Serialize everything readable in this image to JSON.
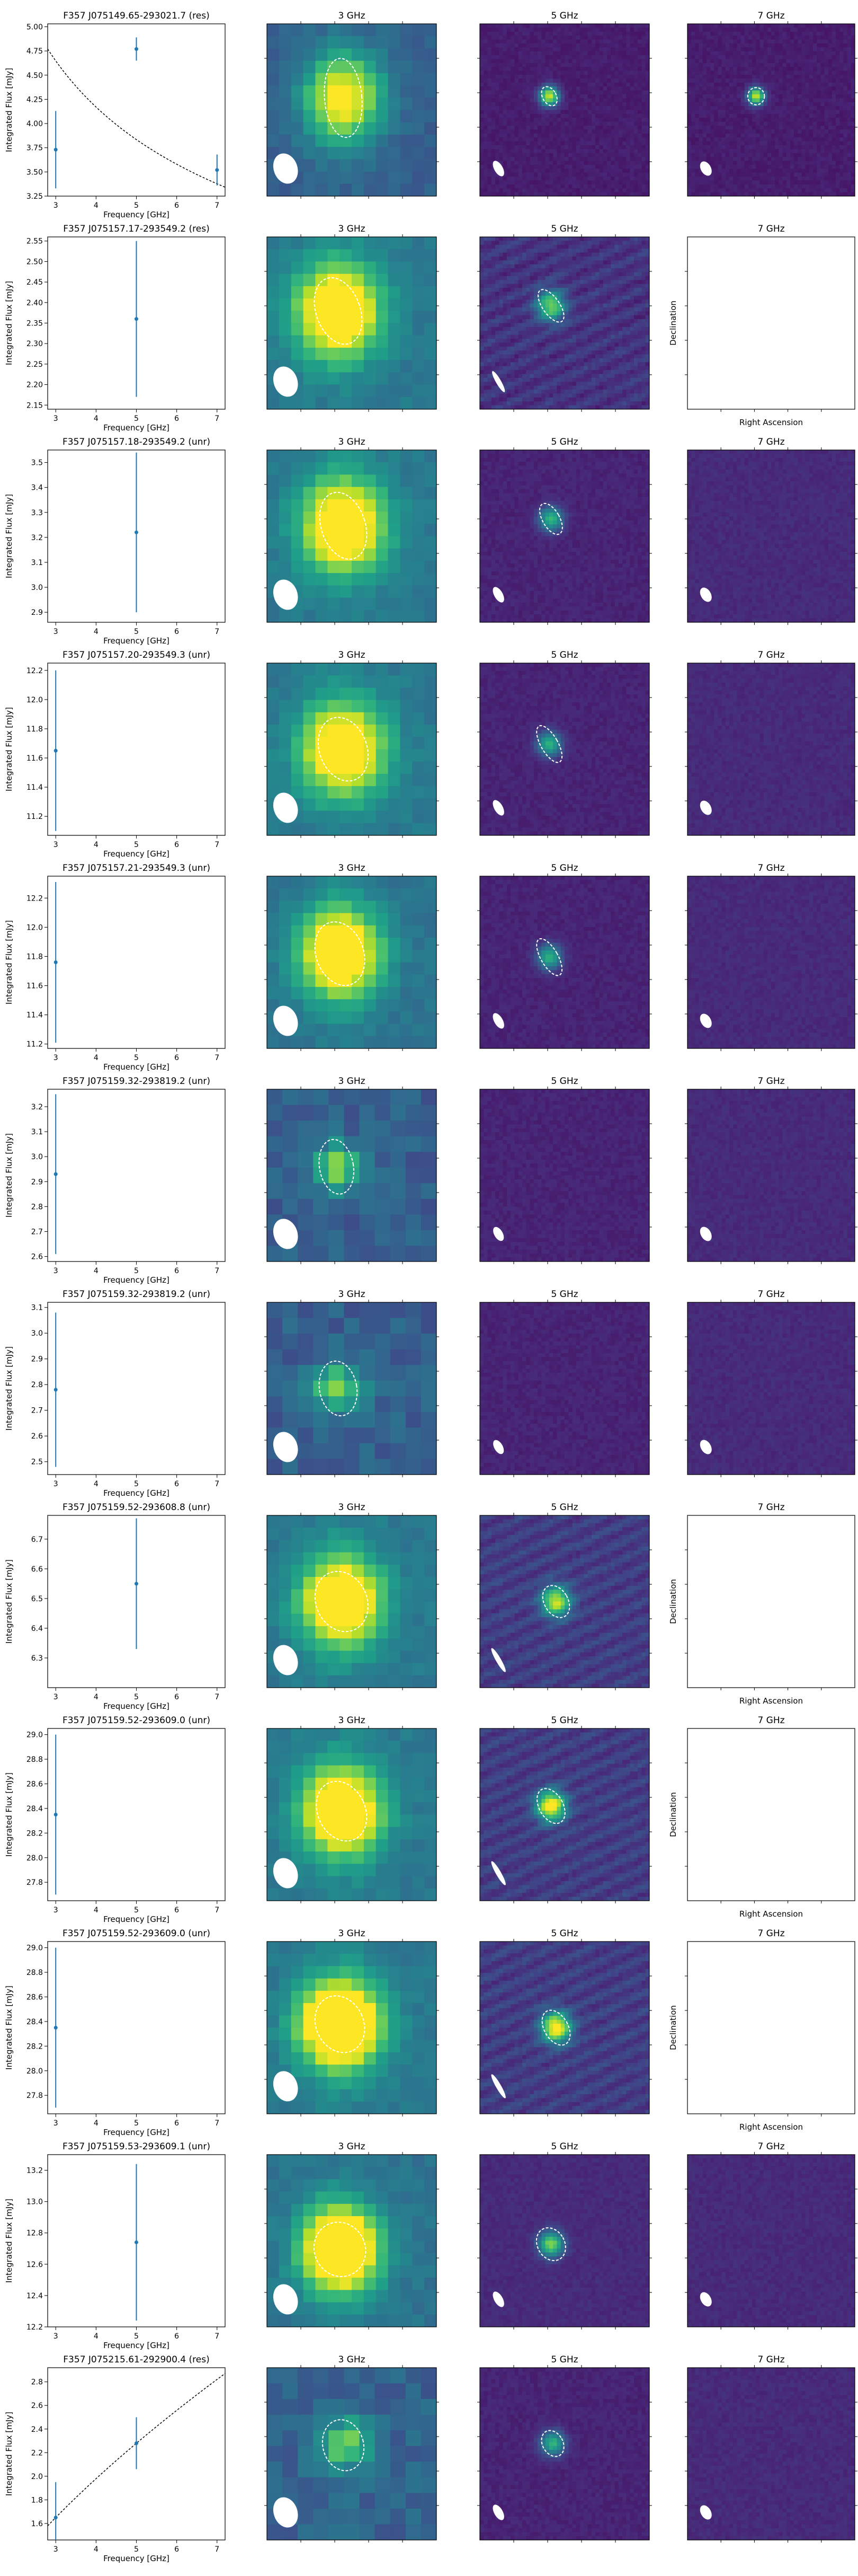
{
  "chart_data": {
    "type": "figure-grid",
    "column_titles": [
      "3 GHz",
      "5 GHz",
      "7 GHz"
    ],
    "common": {
      "xlabel": "Frequency [GHz]",
      "ylabel": "Integrated Flux [mJy]",
      "xticks": [
        3,
        4,
        5,
        6,
        7
      ],
      "xlim": [
        2.8,
        7.2
      ],
      "empty_xlabel": "Right Ascension",
      "empty_ylabel": "Declination"
    },
    "panels": [
      {
        "title": "F357 J075149.65-293021.7 (res)",
        "ylim": [
          3.25,
          5.03
        ],
        "yticks": [
          "3.25",
          "3.50",
          "3.75",
          "4.00",
          "4.25",
          "4.50",
          "4.75",
          "5.00"
        ],
        "points": [
          {
            "x": 3,
            "y": 3.73,
            "err": 0.4
          },
          {
            "x": 5,
            "y": 4.77,
            "err": 0.12
          },
          {
            "x": 7,
            "y": 3.52,
            "err": 0.16
          }
        ],
        "fit": {
          "A": 4.648,
          "alpha": -0.3768
        },
        "images": [
          {
            "state": "image",
            "map": "smooth",
            "peak": 0.55,
            "bg": 0.3,
            "src_x": 0.45,
            "src_y": 0.43,
            "size": 0.16,
            "ell_rx": 0.11,
            "ell_ry": 0.23,
            "ell_rot": -5,
            "beam": true
          },
          {
            "state": "image",
            "map": "fine",
            "peak": 0.85,
            "bg": 0.08,
            "src_x": 0.41,
            "src_y": 0.42,
            "size": 0.04,
            "ell_rx": 0.04,
            "ell_ry": 0.06,
            "ell_rot": -30,
            "beam": true,
            "beam_rx": 0.025,
            "beam_ry": 0.05
          },
          {
            "state": "image",
            "map": "fine",
            "peak": 0.85,
            "bg": 0.08,
            "src_x": 0.41,
            "src_y": 0.42,
            "size": 0.035,
            "ell_rx": 0.05,
            "ell_ry": 0.05,
            "ell_rot": 0,
            "beam": true,
            "beam_rx": 0.03,
            "beam_ry": 0.045
          }
        ]
      },
      {
        "title": "F357 J075157.17-293549.2 (res)",
        "ylim": [
          2.14,
          2.56
        ],
        "yticks": [
          "2.15",
          "2.20",
          "2.25",
          "2.30",
          "2.35",
          "2.40",
          "2.45",
          "2.50",
          "2.55"
        ],
        "points": [
          {
            "x": 5,
            "y": 2.36,
            "err": 0.19
          }
        ],
        "fit": null,
        "images": [
          {
            "state": "image",
            "map": "smooth",
            "peak": 0.75,
            "bg": 0.4,
            "src_x": 0.42,
            "src_y": 0.43,
            "size": 0.17,
            "ell_rx": 0.13,
            "ell_ry": 0.2,
            "ell_rot": -20,
            "beam": true
          },
          {
            "state": "image",
            "map": "striped",
            "peak": 0.65,
            "bg": 0.15,
            "src_x": 0.42,
            "src_y": 0.4,
            "size": 0.06,
            "ell_rx": 0.05,
            "ell_ry": 0.11,
            "ell_rot": -35,
            "beam": true,
            "beam_rx": 0.015,
            "beam_ry": 0.07
          },
          {
            "state": "empty"
          }
        ]
      },
      {
        "title": "F357 J075157.18-293549.2 (unr)",
        "ylim": [
          2.86,
          3.55
        ],
        "yticks": [
          "2.9",
          "3.0",
          "3.1",
          "3.2",
          "3.3",
          "3.4",
          "3.5"
        ],
        "points": [
          {
            "x": 5,
            "y": 3.22,
            "err": 0.32
          }
        ],
        "fit": null,
        "images": [
          {
            "state": "image",
            "map": "smooth",
            "peak": 0.72,
            "bg": 0.4,
            "src_x": 0.45,
            "src_y": 0.44,
            "size": 0.17,
            "ell_rx": 0.13,
            "ell_ry": 0.2,
            "ell_rot": -18,
            "beam": true
          },
          {
            "state": "image",
            "map": "fine",
            "peak": 0.55,
            "bg": 0.1,
            "src_x": 0.42,
            "src_y": 0.4,
            "size": 0.05,
            "ell_rx": 0.05,
            "ell_ry": 0.1,
            "ell_rot": -30,
            "beam": true,
            "beam_rx": 0.025,
            "beam_ry": 0.05
          },
          {
            "state": "image",
            "map": "fine",
            "peak": 0.0,
            "bg": 0.12,
            "src_x": 0.5,
            "src_y": 0.5,
            "size": 0.05,
            "ell_rx": 0,
            "ell_ry": 0,
            "ell_rot": 0,
            "beam": true,
            "beam_rx": 0.03,
            "beam_ry": 0.045
          }
        ]
      },
      {
        "title": "F357 J075157.20-293549.3 (unr)",
        "ylim": [
          11.07,
          12.25
        ],
        "yticks": [
          "11.2",
          "11.4",
          "11.6",
          "11.8",
          "12.0",
          "12.2"
        ],
        "points": [
          {
            "x": 3,
            "y": 11.65,
            "err": 0.55
          }
        ],
        "fit": null,
        "images": [
          {
            "state": "image",
            "map": "smooth",
            "peak": 0.7,
            "bg": 0.4,
            "src_x": 0.45,
            "src_y": 0.5,
            "size": 0.17,
            "ell_rx": 0.14,
            "ell_ry": 0.19,
            "ell_rot": -20,
            "beam": true
          },
          {
            "state": "image",
            "map": "fine",
            "peak": 0.55,
            "bg": 0.1,
            "src_x": 0.41,
            "src_y": 0.47,
            "size": 0.05,
            "ell_rx": 0.05,
            "ell_ry": 0.12,
            "ell_rot": -30,
            "beam": true,
            "beam_rx": 0.025,
            "beam_ry": 0.05
          },
          {
            "state": "image",
            "map": "fine",
            "peak": 0.0,
            "bg": 0.12,
            "src_x": 0.5,
            "src_y": 0.5,
            "size": 0.05,
            "ell_rx": 0,
            "ell_ry": 0,
            "ell_rot": 0,
            "beam": true,
            "beam_rx": 0.03,
            "beam_ry": 0.045
          }
        ]
      },
      {
        "title": "F357 J075157.21-293549.3 (unr)",
        "ylim": [
          11.17,
          12.35
        ],
        "yticks": [
          "11.2",
          "11.4",
          "11.6",
          "11.8",
          "12.0",
          "12.2"
        ],
        "points": [
          {
            "x": 3,
            "y": 11.76,
            "err": 0.55
          }
        ],
        "fit": null,
        "images": [
          {
            "state": "image",
            "map": "smooth",
            "peak": 0.8,
            "bg": 0.38,
            "src_x": 0.43,
            "src_y": 0.45,
            "size": 0.16,
            "ell_rx": 0.14,
            "ell_ry": 0.19,
            "ell_rot": -20,
            "beam": true
          },
          {
            "state": "image",
            "map": "fine",
            "peak": 0.55,
            "bg": 0.1,
            "src_x": 0.41,
            "src_y": 0.47,
            "size": 0.05,
            "ell_rx": 0.05,
            "ell_ry": 0.12,
            "ell_rot": -30,
            "beam": true,
            "beam_rx": 0.025,
            "beam_ry": 0.05
          },
          {
            "state": "image",
            "map": "fine",
            "peak": 0.0,
            "bg": 0.12,
            "src_x": 0.5,
            "src_y": 0.5,
            "size": 0.05,
            "ell_rx": 0,
            "ell_ry": 0,
            "ell_rot": 0,
            "beam": true,
            "beam_rx": 0.03,
            "beam_ry": 0.045
          }
        ]
      },
      {
        "title": "F357 J075159.32-293819.2 (unr)",
        "ylim": [
          2.58,
          3.27
        ],
        "yticks": [
          "2.6",
          "2.7",
          "2.8",
          "2.9",
          "3.0",
          "3.1",
          "3.2"
        ],
        "points": [
          {
            "x": 3,
            "y": 2.93,
            "err": 0.32
          }
        ],
        "fit": null,
        "images": [
          {
            "state": "image",
            "map": "blocky",
            "peak": 0.5,
            "bg": 0.3,
            "src_x": 0.41,
            "src_y": 0.45,
            "size": 0.1,
            "ell_rx": 0.1,
            "ell_ry": 0.16,
            "ell_rot": -10,
            "beam": true
          },
          {
            "state": "image",
            "map": "fine",
            "peak": 0.0,
            "bg": 0.1,
            "src_x": 0.5,
            "src_y": 0.5,
            "size": 0.05,
            "ell_rx": 0,
            "ell_ry": 0,
            "ell_rot": 0,
            "beam": true,
            "beam_rx": 0.025,
            "beam_ry": 0.045
          },
          {
            "state": "image",
            "map": "fine",
            "peak": 0.0,
            "bg": 0.12,
            "src_x": 0.5,
            "src_y": 0.5,
            "size": 0.05,
            "ell_rx": 0,
            "ell_ry": 0,
            "ell_rot": 0,
            "beam": true,
            "beam_rx": 0.03,
            "beam_ry": 0.045
          }
        ]
      },
      {
        "title": "F357 J075159.32-293819.2 (unr)",
        "ylim": [
          2.45,
          3.12
        ],
        "yticks": [
          "2.5",
          "2.6",
          "2.7",
          "2.8",
          "2.9",
          "3.0",
          "3.1"
        ],
        "points": [
          {
            "x": 3,
            "y": 2.78,
            "err": 0.3
          }
        ],
        "fit": null,
        "images": [
          {
            "state": "image",
            "map": "blocky",
            "peak": 0.52,
            "bg": 0.3,
            "src_x": 0.42,
            "src_y": 0.5,
            "size": 0.1,
            "ell_rx": 0.11,
            "ell_ry": 0.16,
            "ell_rot": -10,
            "beam": true
          },
          {
            "state": "image",
            "map": "fine",
            "peak": 0.0,
            "bg": 0.1,
            "src_x": 0.5,
            "src_y": 0.5,
            "size": 0.05,
            "ell_rx": 0,
            "ell_ry": 0,
            "ell_rot": 0,
            "beam": true,
            "beam_rx": 0.025,
            "beam_ry": 0.045
          },
          {
            "state": "image",
            "map": "fine",
            "peak": 0.0,
            "bg": 0.12,
            "src_x": 0.5,
            "src_y": 0.5,
            "size": 0.05,
            "ell_rx": 0,
            "ell_ry": 0,
            "ell_rot": 0,
            "beam": true,
            "beam_rx": 0.03,
            "beam_ry": 0.045
          }
        ]
      },
      {
        "title": "F357 J075159.52-293608.8 (unr)",
        "ylim": [
          6.2,
          6.78
        ],
        "yticks": [
          "6.3",
          "6.4",
          "6.5",
          "6.6",
          "6.7"
        ],
        "points": [
          {
            "x": 5,
            "y": 6.55,
            "err": 0.22
          }
        ],
        "fit": null,
        "images": [
          {
            "state": "image",
            "map": "smooth",
            "peak": 0.8,
            "bg": 0.4,
            "src_x": 0.44,
            "src_y": 0.5,
            "size": 0.16,
            "ell_rx": 0.15,
            "ell_ry": 0.18,
            "ell_rot": -25,
            "beam": true
          },
          {
            "state": "image",
            "map": "striped",
            "peak": 0.75,
            "bg": 0.18,
            "src_x": 0.45,
            "src_y": 0.5,
            "size": 0.06,
            "ell_rx": 0.07,
            "ell_ry": 0.1,
            "ell_rot": -30,
            "beam": true,
            "beam_rx": 0.015,
            "beam_ry": 0.08
          },
          {
            "state": "empty"
          }
        ]
      },
      {
        "title": "F357 J075159.52-293609.0 (unr)",
        "ylim": [
          27.65,
          29.05
        ],
        "yticks": [
          "27.8",
          "28.0",
          "28.2",
          "28.4",
          "28.6",
          "28.8",
          "29.0"
        ],
        "points": [
          {
            "x": 3,
            "y": 28.35,
            "err": 0.65
          }
        ],
        "fit": null,
        "images": [
          {
            "state": "image",
            "map": "smooth",
            "peak": 0.8,
            "bg": 0.4,
            "src_x": 0.44,
            "src_y": 0.48,
            "size": 0.16,
            "ell_rx": 0.14,
            "ell_ry": 0.18,
            "ell_rot": -25,
            "beam": true
          },
          {
            "state": "image",
            "map": "striped",
            "peak": 0.9,
            "bg": 0.18,
            "src_x": 0.42,
            "src_y": 0.45,
            "size": 0.06,
            "ell_rx": 0.07,
            "ell_ry": 0.11,
            "ell_rot": -30,
            "beam": true,
            "beam_rx": 0.015,
            "beam_ry": 0.08
          },
          {
            "state": "empty"
          }
        ]
      },
      {
        "title": "F357 J075159.52-293609.0 (unr)",
        "ylim": [
          27.65,
          29.05
        ],
        "yticks": [
          "27.8",
          "28.0",
          "28.2",
          "28.4",
          "28.6",
          "28.8",
          "29.0"
        ],
        "points": [
          {
            "x": 3,
            "y": 28.35,
            "err": 0.65
          }
        ],
        "fit": null,
        "images": [
          {
            "state": "image",
            "map": "smooth",
            "peak": 1.0,
            "bg": 0.4,
            "src_x": 0.43,
            "src_y": 0.48,
            "size": 0.16,
            "ell_rx": 0.14,
            "ell_ry": 0.17,
            "ell_rot": -25,
            "beam": true
          },
          {
            "state": "image",
            "map": "striped",
            "peak": 0.9,
            "bg": 0.18,
            "src_x": 0.45,
            "src_y": 0.5,
            "size": 0.06,
            "ell_rx": 0.07,
            "ell_ry": 0.11,
            "ell_rot": -30,
            "beam": true,
            "beam_rx": 0.015,
            "beam_ry": 0.08
          },
          {
            "state": "empty"
          }
        ]
      },
      {
        "title": "F357 J075159.53-293609.1 (unr)",
        "ylim": [
          12.2,
          13.3
        ],
        "yticks": [
          "12.2",
          "12.4",
          "12.6",
          "12.8",
          "13.0",
          "13.2"
        ],
        "points": [
          {
            "x": 5,
            "y": 12.74,
            "err": 0.5
          }
        ],
        "fit": null,
        "images": [
          {
            "state": "image",
            "map": "smooth",
            "peak": 1.0,
            "bg": 0.38,
            "src_x": 0.43,
            "src_y": 0.55,
            "size": 0.15,
            "ell_rx": 0.15,
            "ell_ry": 0.16,
            "ell_rot": -25,
            "beam": true
          },
          {
            "state": "image",
            "map": "fine",
            "peak": 0.7,
            "bg": 0.12,
            "src_x": 0.42,
            "src_y": 0.52,
            "size": 0.05,
            "ell_rx": 0.08,
            "ell_ry": 0.1,
            "ell_rot": -30,
            "beam": true,
            "beam_rx": 0.025,
            "beam_ry": 0.05
          },
          {
            "state": "image",
            "map": "fine",
            "peak": 0.0,
            "bg": 0.12,
            "src_x": 0.5,
            "src_y": 0.5,
            "size": 0.05,
            "ell_rx": 0,
            "ell_ry": 0,
            "ell_rot": 0,
            "beam": true,
            "beam_rx": 0.03,
            "beam_ry": 0.045
          }
        ]
      },
      {
        "title": "F357 J075215.61-292900.4 (res)",
        "ylim": [
          1.46,
          2.92
        ],
        "yticks": [
          "1.6",
          "1.8",
          "2.0",
          "2.2",
          "2.4",
          "2.6",
          "2.8"
        ],
        "points": [
          {
            "x": 3,
            "y": 1.65,
            "err": 0.3
          },
          {
            "x": 5,
            "y": 2.28,
            "err": 0.22
          }
        ],
        "fit": {
          "A": 1.65,
          "alpha": 0.6327
        },
        "images": [
          {
            "state": "image",
            "map": "blocky",
            "peak": 0.52,
            "bg": 0.32,
            "src_x": 0.45,
            "src_y": 0.45,
            "size": 0.1,
            "ell_rx": 0.12,
            "ell_ry": 0.15,
            "ell_rot": -15,
            "beam": true
          },
          {
            "state": "image",
            "map": "fine",
            "peak": 0.55,
            "bg": 0.1,
            "src_x": 0.43,
            "src_y": 0.44,
            "size": 0.05,
            "ell_rx": 0.06,
            "ell_ry": 0.08,
            "ell_rot": -30,
            "beam": true,
            "beam_rx": 0.025,
            "beam_ry": 0.05
          },
          {
            "state": "image",
            "map": "fine",
            "peak": 0.0,
            "bg": 0.12,
            "src_x": 0.5,
            "src_y": 0.5,
            "size": 0.05,
            "ell_rx": 0,
            "ell_ry": 0,
            "ell_rot": 0,
            "beam": true,
            "beam_rx": 0.03,
            "beam_ry": 0.045
          }
        ]
      }
    ]
  }
}
